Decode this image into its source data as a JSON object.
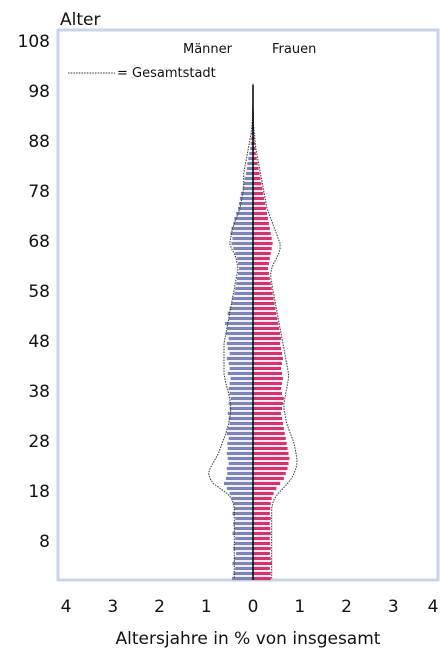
{
  "chart_data": {
    "type": "bar",
    "subtype": "population-pyramid",
    "y_axis_label": "Alter",
    "xlabel": "Altersjahre in % von insgesamt",
    "xlim": [
      -4,
      4
    ],
    "ylim": [
      0,
      108
    ],
    "x_tick_labels": [
      "4",
      "3",
      "2",
      "1",
      "0",
      "1",
      "2",
      "3",
      "4"
    ],
    "y_ticks": [
      8,
      18,
      28,
      38,
      48,
      58,
      68,
      78,
      88,
      98,
      108
    ],
    "legend": {
      "reference_line_label": "= Gesamtstadt",
      "placement": "top-left"
    },
    "series_labels": {
      "men": "Männer",
      "women": "Frauen"
    },
    "colors": {
      "men": "#7c84b8",
      "women": "#d3336e",
      "frame": "#c9d4ea",
      "reference": "#333333"
    },
    "ages": [
      0,
      1,
      2,
      3,
      4,
      5,
      6,
      7,
      8,
      9,
      10,
      11,
      12,
      13,
      14,
      15,
      16,
      17,
      18,
      19,
      20,
      21,
      22,
      23,
      24,
      25,
      26,
      27,
      28,
      29,
      30,
      31,
      32,
      33,
      34,
      35,
      36,
      37,
      38,
      39,
      40,
      41,
      42,
      43,
      44,
      45,
      46,
      47,
      48,
      49,
      50,
      51,
      52,
      53,
      54,
      55,
      56,
      57,
      58,
      59,
      60,
      61,
      62,
      63,
      64,
      65,
      66,
      67,
      68,
      69,
      70,
      71,
      72,
      73,
      74,
      75,
      76,
      77,
      78,
      79,
      80,
      81,
      82,
      83,
      84,
      85,
      86,
      87,
      88,
      89,
      90,
      91,
      92,
      93,
      94,
      95,
      96,
      97,
      98,
      99
    ],
    "men_values": [
      0.45,
      0.42,
      0.38,
      0.44,
      0.4,
      0.36,
      0.42,
      0.4,
      0.38,
      0.44,
      0.4,
      0.42,
      0.38,
      0.44,
      0.4,
      0.42,
      0.46,
      0.5,
      0.56,
      0.62,
      0.58,
      0.55,
      0.56,
      0.52,
      0.54,
      0.56,
      0.54,
      0.55,
      0.52,
      0.56,
      0.54,
      0.5,
      0.52,
      0.54,
      0.5,
      0.52,
      0.48,
      0.5,
      0.52,
      0.5,
      0.48,
      0.54,
      0.5,
      0.52,
      0.56,
      0.5,
      0.54,
      0.56,
      0.52,
      0.58,
      0.56,
      0.6,
      0.52,
      0.54,
      0.5,
      0.46,
      0.44,
      0.4,
      0.38,
      0.36,
      0.34,
      0.32,
      0.3,
      0.32,
      0.34,
      0.38,
      0.42,
      0.46,
      0.44,
      0.48,
      0.46,
      0.42,
      0.4,
      0.36,
      0.32,
      0.3,
      0.28,
      0.26,
      0.22,
      0.2,
      0.18,
      0.15,
      0.13,
      0.12,
      0.1,
      0.08,
      0.06,
      0.05,
      0.04,
      0.03,
      0.02,
      0.02,
      0.01,
      0.01,
      0.01,
      0.0,
      0.0,
      0.0,
      0.0,
      0.0
    ],
    "women_values": [
      0.38,
      0.38,
      0.36,
      0.4,
      0.38,
      0.36,
      0.38,
      0.37,
      0.36,
      0.38,
      0.37,
      0.36,
      0.38,
      0.36,
      0.37,
      0.38,
      0.4,
      0.44,
      0.5,
      0.58,
      0.66,
      0.7,
      0.74,
      0.76,
      0.78,
      0.76,
      0.74,
      0.72,
      0.7,
      0.68,
      0.66,
      0.64,
      0.62,
      0.6,
      0.62,
      0.64,
      0.66,
      0.62,
      0.6,
      0.62,
      0.64,
      0.62,
      0.6,
      0.62,
      0.64,
      0.62,
      0.6,
      0.58,
      0.6,
      0.58,
      0.56,
      0.54,
      0.52,
      0.5,
      0.48,
      0.46,
      0.44,
      0.42,
      0.4,
      0.38,
      0.36,
      0.34,
      0.32,
      0.34,
      0.36,
      0.38,
      0.4,
      0.42,
      0.4,
      0.38,
      0.36,
      0.34,
      0.32,
      0.3,
      0.28,
      0.26,
      0.24,
      0.22,
      0.2,
      0.18,
      0.16,
      0.14,
      0.12,
      0.1,
      0.08,
      0.06,
      0.05,
      0.04,
      0.03,
      0.02,
      0.02,
      0.01,
      0.01,
      0.01,
      0.0,
      0.0,
      0.0,
      0.0,
      0.0,
      0.0
    ],
    "reference_men": [
      0.4,
      0.4,
      0.4,
      0.4,
      0.4,
      0.4,
      0.4,
      0.4,
      0.4,
      0.4,
      0.4,
      0.4,
      0.4,
      0.4,
      0.4,
      0.42,
      0.46,
      0.55,
      0.7,
      0.85,
      0.92,
      0.95,
      0.92,
      0.86,
      0.8,
      0.74,
      0.7,
      0.66,
      0.62,
      0.58,
      0.55,
      0.52,
      0.5,
      0.48,
      0.48,
      0.48,
      0.5,
      0.52,
      0.55,
      0.58,
      0.6,
      0.62,
      0.62,
      0.62,
      0.62,
      0.62,
      0.62,
      0.62,
      0.6,
      0.58,
      0.56,
      0.54,
      0.52,
      0.5,
      0.48,
      0.46,
      0.44,
      0.42,
      0.4,
      0.38,
      0.36,
      0.34,
      0.32,
      0.34,
      0.36,
      0.4,
      0.46,
      0.5,
      0.48,
      0.46,
      0.44,
      0.4,
      0.36,
      0.32,
      0.28,
      0.26,
      0.24,
      0.22,
      0.2,
      0.2,
      0.2,
      0.2,
      0.18,
      0.16,
      0.14,
      0.12,
      0.1,
      0.08,
      0.06,
      0.04,
      0.03,
      0.02,
      0.01,
      0.01,
      0.01,
      0.0,
      0.0,
      0.0,
      0.0,
      0.0
    ],
    "reference_women": [
      0.4,
      0.4,
      0.4,
      0.4,
      0.4,
      0.4,
      0.4,
      0.4,
      0.4,
      0.4,
      0.4,
      0.4,
      0.4,
      0.4,
      0.4,
      0.42,
      0.46,
      0.54,
      0.64,
      0.74,
      0.82,
      0.88,
      0.92,
      0.94,
      0.94,
      0.92,
      0.9,
      0.88,
      0.84,
      0.8,
      0.76,
      0.72,
      0.7,
      0.68,
      0.66,
      0.66,
      0.68,
      0.7,
      0.72,
      0.74,
      0.76,
      0.76,
      0.74,
      0.72,
      0.7,
      0.68,
      0.66,
      0.64,
      0.62,
      0.6,
      0.58,
      0.56,
      0.54,
      0.52,
      0.5,
      0.48,
      0.46,
      0.44,
      0.42,
      0.4,
      0.38,
      0.38,
      0.4,
      0.44,
      0.5,
      0.55,
      0.58,
      0.58,
      0.54,
      0.5,
      0.46,
      0.42,
      0.38,
      0.34,
      0.3,
      0.28,
      0.26,
      0.24,
      0.22,
      0.2,
      0.18,
      0.16,
      0.14,
      0.12,
      0.1,
      0.08,
      0.06,
      0.05,
      0.04,
      0.03,
      0.02,
      0.01,
      0.01,
      0.01,
      0.0,
      0.0,
      0.0,
      0.0,
      0.0,
      0.0
    ]
  }
}
